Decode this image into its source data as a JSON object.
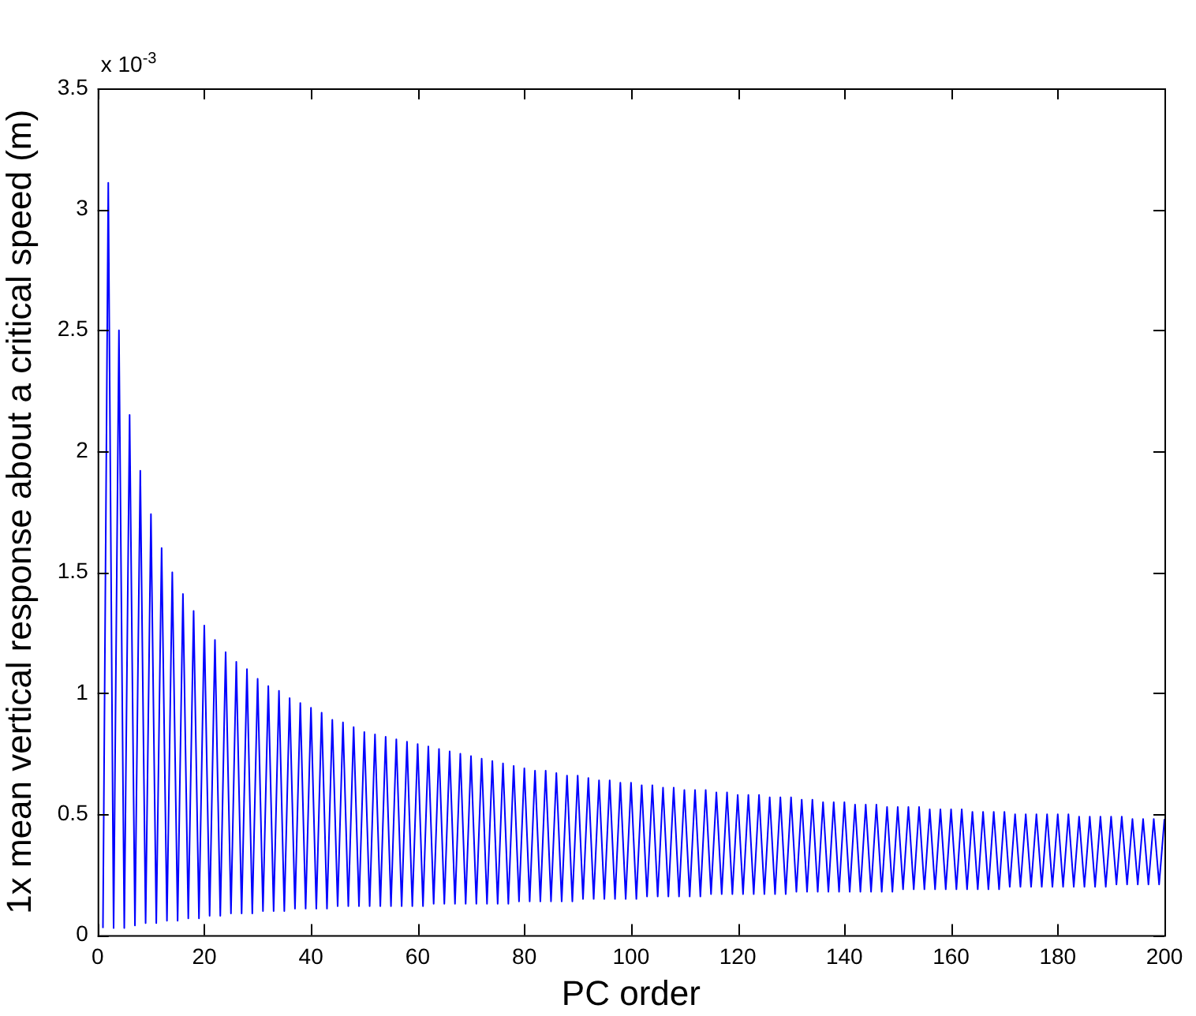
{
  "chart_data": {
    "type": "line",
    "xlabel": "PC order",
    "ylabel": "1x mean vertical response about a critical speed (m)",
    "annotations": [
      "x 10$^{-3}$"
    ],
    "xlim": [
      0,
      200
    ],
    "xticks": [
      0,
      20,
      40,
      60,
      80,
      100,
      120,
      140,
      160,
      180,
      200
    ],
    "ylim": [
      0,
      3.5
    ],
    "yticks": [
      0,
      0.5,
      1,
      1.5,
      2,
      2.5,
      3,
      3.5
    ],
    "grid": false,
    "legend": false,
    "marker": "none",
    "line_style": "solid",
    "x": [
      1,
      2,
      3,
      4,
      5,
      6,
      7,
      8,
      9,
      10,
      11,
      12,
      13,
      14,
      15,
      16,
      17,
      18,
      19,
      20,
      21,
      22,
      23,
      24,
      25,
      26,
      27,
      28,
      29,
      30,
      31,
      32,
      33,
      34,
      35,
      36,
      37,
      38,
      39,
      40,
      41,
      42,
      43,
      44,
      45,
      46,
      47,
      48,
      49,
      50,
      51,
      52,
      53,
      54,
      55,
      56,
      57,
      58,
      59,
      60,
      61,
      62,
      63,
      64,
      65,
      66,
      67,
      68,
      69,
      70,
      71,
      72,
      73,
      74,
      75,
      76,
      77,
      78,
      79,
      80,
      81,
      82,
      83,
      84,
      85,
      86,
      87,
      88,
      89,
      90,
      91,
      92,
      93,
      94,
      95,
      96,
      97,
      98,
      99,
      100,
      101,
      102,
      103,
      104,
      105,
      106,
      107,
      108,
      109,
      110,
      111,
      112,
      113,
      114,
      115,
      116,
      117,
      118,
      119,
      120,
      121,
      122,
      123,
      124,
      125,
      126,
      127,
      128,
      129,
      130,
      131,
      132,
      133,
      134,
      135,
      136,
      137,
      138,
      139,
      140,
      141,
      142,
      143,
      144,
      145,
      146,
      147,
      148,
      149,
      150,
      151,
      152,
      153,
      154,
      155,
      156,
      157,
      158,
      159,
      160,
      161,
      162,
      163,
      164,
      165,
      166,
      167,
      168,
      169,
      170,
      171,
      172,
      173,
      174,
      175,
      176,
      177,
      178,
      179,
      180,
      181,
      182,
      183,
      184,
      185,
      186,
      187,
      188,
      189,
      190,
      191,
      192,
      193,
      194,
      195,
      196,
      197,
      198,
      199,
      200
    ],
    "series": [
      {
        "color": "#0000ff",
        "values": [
          0.03,
          3.11,
          0.03,
          2.5,
          0.03,
          2.15,
          0.04,
          1.92,
          0.05,
          1.74,
          0.05,
          1.6,
          0.06,
          1.5,
          0.06,
          1.41,
          0.07,
          1.34,
          0.07,
          1.28,
          0.08,
          1.22,
          0.08,
          1.17,
          0.09,
          1.13,
          0.09,
          1.1,
          0.09,
          1.06,
          0.1,
          1.03,
          0.1,
          1.01,
          0.1,
          0.98,
          0.11,
          0.96,
          0.11,
          0.94,
          0.11,
          0.92,
          0.11,
          0.89,
          0.12,
          0.88,
          0.12,
          0.86,
          0.12,
          0.84,
          0.12,
          0.83,
          0.12,
          0.82,
          0.12,
          0.81,
          0.12,
          0.8,
          0.12,
          0.79,
          0.12,
          0.78,
          0.13,
          0.77,
          0.13,
          0.76,
          0.13,
          0.75,
          0.13,
          0.74,
          0.13,
          0.73,
          0.13,
          0.72,
          0.13,
          0.71,
          0.13,
          0.7,
          0.14,
          0.69,
          0.14,
          0.68,
          0.14,
          0.68,
          0.14,
          0.67,
          0.14,
          0.66,
          0.14,
          0.66,
          0.15,
          0.65,
          0.15,
          0.64,
          0.15,
          0.64,
          0.15,
          0.63,
          0.15,
          0.63,
          0.15,
          0.62,
          0.16,
          0.62,
          0.16,
          0.61,
          0.16,
          0.61,
          0.16,
          0.6,
          0.16,
          0.6,
          0.16,
          0.6,
          0.17,
          0.59,
          0.17,
          0.59,
          0.17,
          0.58,
          0.17,
          0.58,
          0.17,
          0.58,
          0.17,
          0.57,
          0.17,
          0.57,
          0.17,
          0.57,
          0.18,
          0.56,
          0.18,
          0.56,
          0.18,
          0.55,
          0.18,
          0.55,
          0.18,
          0.55,
          0.18,
          0.54,
          0.18,
          0.54,
          0.18,
          0.54,
          0.18,
          0.53,
          0.18,
          0.53,
          0.19,
          0.53,
          0.19,
          0.53,
          0.19,
          0.52,
          0.19,
          0.52,
          0.19,
          0.52,
          0.19,
          0.52,
          0.19,
          0.51,
          0.19,
          0.51,
          0.19,
          0.51,
          0.19,
          0.51,
          0.2,
          0.5,
          0.2,
          0.5,
          0.2,
          0.5,
          0.2,
          0.5,
          0.2,
          0.5,
          0.2,
          0.5,
          0.2,
          0.49,
          0.2,
          0.49,
          0.2,
          0.49,
          0.2,
          0.49,
          0.21,
          0.49,
          0.21,
          0.48,
          0.21,
          0.48,
          0.21,
          0.48,
          0.21,
          0.48
        ]
      }
    ]
  }
}
